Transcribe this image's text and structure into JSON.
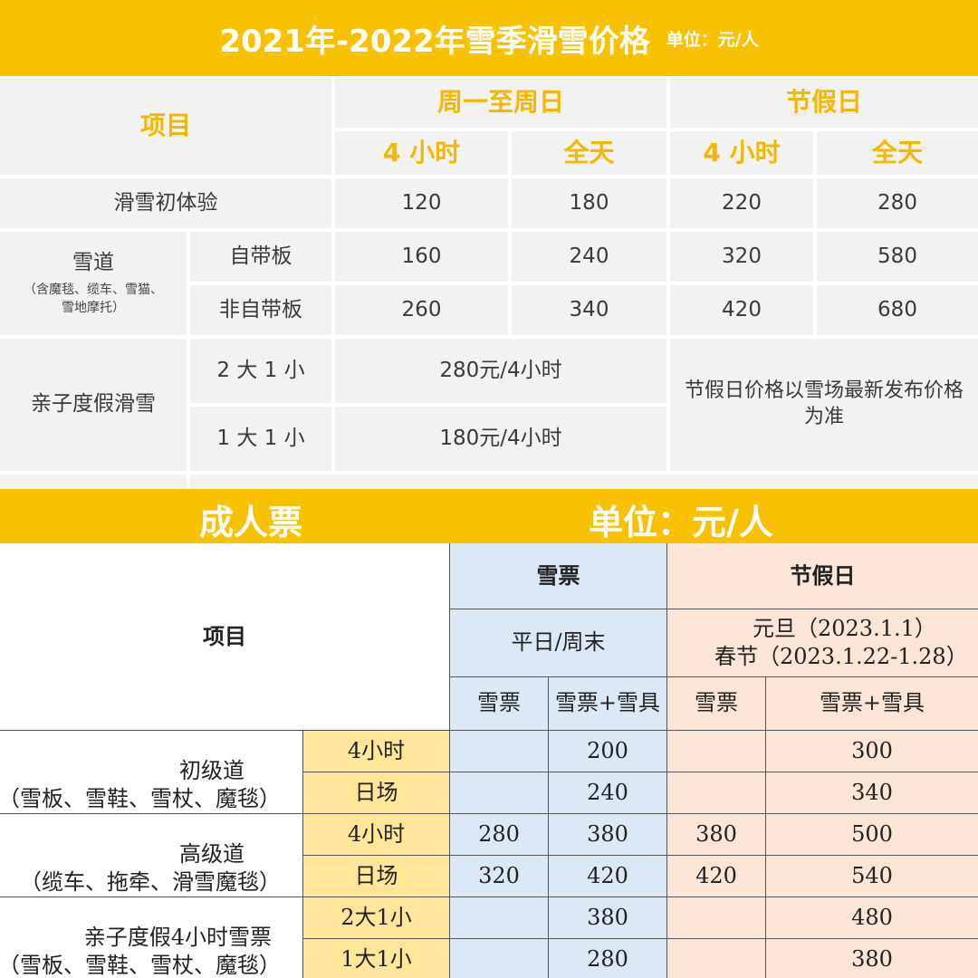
{
  "top": {
    "title": "2021年-2022年雪季滑雪价格",
    "unit": "单位：元/人",
    "header": {
      "item": "项目",
      "weekday_group": "周一至周日",
      "holiday_group": "节假日",
      "four_hours": "4 小时",
      "full_day": "全天"
    },
    "rows": {
      "beginner": {
        "label": "滑雪初体验",
        "values": [
          "120",
          "180",
          "220",
          "280"
        ]
      },
      "slope": {
        "label": "雪道",
        "note_line1": "（含魔毯、缆车、雪猫、",
        "note_line2": "雪地摩托）",
        "own_board": {
          "label": "自带板",
          "values": [
            "160",
            "240",
            "320",
            "580"
          ]
        },
        "no_board": {
          "label": "非自带板",
          "values": [
            "260",
            "340",
            "420",
            "680"
          ]
        }
      },
      "family": {
        "label": "亲子度假滑雪",
        "two_one": {
          "label": "2 大 1 小",
          "price": "280元/4小时"
        },
        "one_one": {
          "label": "1 大 1 小",
          "price": "180元/4小时"
        },
        "holiday_note": "节假日价格以雪场最新发布价格为准"
      }
    }
  },
  "bottom": {
    "title": "成人票",
    "unit": "单位：元/人",
    "header": {
      "item": "项目",
      "ticket_group": "雪票",
      "holiday_group": "节假日",
      "weekday_weekend": "平日/周末",
      "new_year": "元旦（2023.1.1）",
      "spring_festival": "春节（2023.1.22-1.28）",
      "ticket": "雪票",
      "ticket_gear": "雪票+雪具"
    },
    "rows": [
      {
        "label": "初级道",
        "note": "（雪板、雪鞋、雪杖、魔毯）",
        "sub": [
          {
            "duration": "4小时",
            "values": [
              "",
              "200",
              "",
              "300"
            ]
          },
          {
            "duration": "日场",
            "values": [
              "",
              "240",
              "",
              "340"
            ]
          }
        ]
      },
      {
        "label": "高级道",
        "note": "（缆车、拖牵、滑雪魔毯）",
        "sub": [
          {
            "duration": "4小时",
            "values": [
              "280",
              "380",
              "380",
              "500"
            ]
          },
          {
            "duration": "日场",
            "values": [
              "320",
              "420",
              "420",
              "540"
            ]
          }
        ]
      },
      {
        "label": "亲子度假4小时雪票",
        "note": "（雪板、雪鞋、雪杖、魔毯）",
        "sub": [
          {
            "duration": "2大1小",
            "values": [
              "",
              "380",
              "",
              "480"
            ]
          },
          {
            "duration": "1大1小",
            "values": [
              "",
              "280",
              "",
              "380"
            ]
          }
        ]
      }
    ]
  },
  "colors": {
    "accent_yellow": "#f8c200",
    "header_text_yellow": "#f5b800",
    "grey_cell": "#f2f2f2",
    "blue_cell": "#dbe9f6",
    "pink_cell": "#fbe5d6",
    "light_yellow_cell": "#ffe699"
  }
}
